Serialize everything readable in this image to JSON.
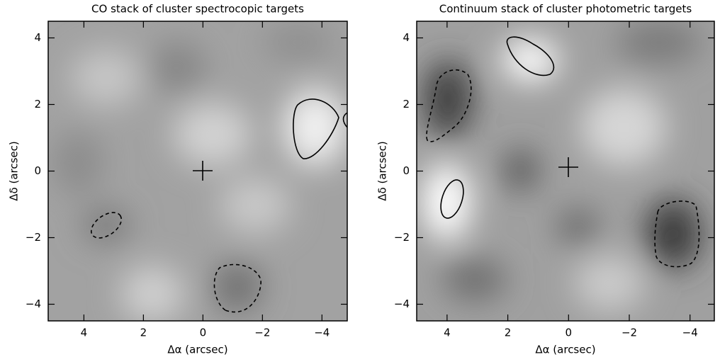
{
  "chart_data": [
    {
      "type": "image",
      "title": "CO stack of cluster spectrocopic targets",
      "xlabel": "Δα (arcsec)",
      "ylabel": "Δδ (arcsec)",
      "xlim": [
        5.2,
        -4.85
      ],
      "ylim": [
        -4.5,
        4.5
      ],
      "xticks": [
        4,
        2,
        0,
        {
          "value": -2,
          "label": "−2"
        },
        {
          "value": -4,
          "label": "−4"
        }
      ],
      "yticks": [
        {
          "value": -4,
          "label": "−4"
        },
        {
          "value": -2,
          "label": "−2"
        },
        0,
        2,
        4
      ]
    },
    {
      "type": "image",
      "title": "Continuum stack of cluster photometric targets",
      "xlabel": "Δα (arcsec)",
      "ylabel": "Δδ (arcsec)",
      "xlim": [
        5.0,
        -4.8
      ],
      "ylim": [
        -4.5,
        4.5
      ],
      "xticks": [
        4,
        2,
        0,
        {
          "value": -2,
          "label": "−2"
        },
        {
          "value": -4,
          "label": "−4"
        }
      ],
      "yticks": [
        {
          "value": -4,
          "label": "−4"
        },
        {
          "value": -2,
          "label": "−2"
        },
        0,
        2,
        4
      ]
    }
  ]
}
